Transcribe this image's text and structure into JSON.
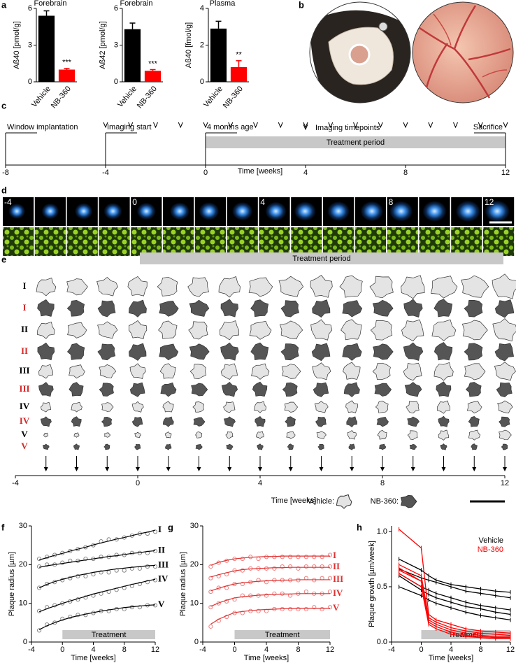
{
  "panel_labels": [
    "a",
    "b",
    "c",
    "d",
    "e",
    "f",
    "g",
    "h"
  ],
  "chart_data": [
    {
      "type": "bar",
      "title": "Forebrain",
      "ylabel": "Aß40 [pmol/g]",
      "categories": [
        "Vehicle",
        "NB-360"
      ],
      "values": [
        5.4,
        1.0
      ],
      "errors": [
        0.4,
        0.1
      ],
      "colors": [
        "#000000",
        "#ff0000"
      ],
      "ylim": [
        0,
        6
      ],
      "yticks": [
        0,
        3,
        6
      ],
      "significance": "***"
    },
    {
      "type": "bar",
      "title": "Forebrain",
      "ylabel": "Aß42 [pmol/g]",
      "categories": [
        "Vehicle",
        "NB-360"
      ],
      "values": [
        4.3,
        0.9
      ],
      "errors": [
        0.5,
        0.1
      ],
      "colors": [
        "#000000",
        "#ff0000"
      ],
      "ylim": [
        0,
        6
      ],
      "yticks": [
        0,
        3,
        6
      ],
      "significance": "***"
    },
    {
      "type": "bar",
      "title": "Plasma",
      "ylabel": "Aß40 [fmol/g]",
      "categories": [
        "Vehicle",
        "NB-360"
      ],
      "values": [
        2.9,
        0.8
      ],
      "errors": [
        0.4,
        0.35
      ],
      "colors": [
        "#000000",
        "#ff0000"
      ],
      "ylim": [
        0,
        4
      ],
      "yticks": [
        0,
        2,
        4
      ],
      "significance": "**"
    },
    {
      "type": "scatter_fit",
      "xlabel": "Time [weeks]",
      "ylabel": "Plaque radius [µm]",
      "xlim": [
        -4,
        12
      ],
      "xticks": [
        -4,
        0,
        4,
        8,
        12
      ],
      "ylim": [
        0,
        30
      ],
      "yticks": [
        0,
        10,
        20,
        30
      ],
      "treatment": {
        "label": "Treatment",
        "start": 0,
        "end": 12
      },
      "x": [
        -3,
        -2,
        -1,
        0,
        1,
        2,
        3,
        4,
        5,
        6,
        7,
        8,
        9,
        10,
        11,
        12
      ],
      "series": [
        {
          "name": "I",
          "color": "#888888",
          "line_color": "#000000",
          "values": [
            21.5,
            22,
            22.5,
            23,
            23.5,
            24,
            24.5,
            25,
            26,
            26.5,
            26.5,
            27,
            27.5,
            28,
            28,
            28.5
          ],
          "fit": [
            21.2,
            21.8,
            22.4,
            22.9,
            23.5,
            24.0,
            24.5,
            25.1,
            25.6,
            26.1,
            26.6,
            27.0,
            27.5,
            28.0,
            28.4,
            28.9
          ]
        },
        {
          "name": "II",
          "color": "#888888",
          "line_color": "#000000",
          "values": [
            19.5,
            20,
            20,
            20.5,
            21,
            21,
            21.5,
            21.5,
            22,
            22,
            22.5,
            22.5,
            23,
            23,
            23,
            23.5
          ],
          "fit": [
            19.3,
            19.7,
            20.0,
            20.3,
            20.6,
            20.9,
            21.2,
            21.5,
            21.8,
            22.1,
            22.3,
            22.6,
            22.9,
            23.1,
            23.4,
            23.6
          ]
        },
        {
          "name": "III",
          "color": "#888888",
          "line_color": "#000000",
          "values": [
            14,
            15,
            15.5,
            16,
            16.5,
            17,
            17,
            17.5,
            18,
            18,
            18.5,
            18.5,
            19,
            19,
            19.5,
            19.5
          ],
          "fit": [
            14.0,
            14.9,
            15.6,
            16.2,
            16.7,
            17.2,
            17.6,
            18.0,
            18.3,
            18.6,
            18.9,
            19.1,
            19.3,
            19.5,
            19.7,
            19.8
          ]
        },
        {
          "name": "IV",
          "color": "#888888",
          "line_color": "#000000",
          "values": [
            8,
            9,
            9.5,
            10,
            10.5,
            11,
            11.5,
            12,
            12.5,
            13,
            13.5,
            14,
            14.5,
            15,
            15.5,
            16
          ],
          "fit": [
            7.8,
            8.6,
            9.3,
            10.0,
            10.6,
            11.2,
            11.8,
            12.4,
            12.9,
            13.4,
            13.9,
            14.4,
            14.9,
            15.3,
            15.8,
            16.2
          ]
        },
        {
          "name": "V",
          "color": "#888888",
          "line_color": "#000000",
          "values": [
            3,
            4.5,
            5,
            6,
            6.5,
            7,
            7,
            7.5,
            8,
            8,
            8.5,
            8.5,
            9,
            9,
            9.5,
            9.5
          ],
          "fit": [
            3.2,
            4.2,
            5.0,
            5.7,
            6.3,
            6.8,
            7.2,
            7.6,
            8.0,
            8.3,
            8.6,
            8.9,
            9.1,
            9.3,
            9.5,
            9.6
          ]
        }
      ]
    },
    {
      "type": "scatter_fit",
      "xlabel": "Time [weeks]",
      "ylabel": "Plaque radius [µm]",
      "xlim": [
        -4,
        12
      ],
      "xticks": [
        -4,
        0,
        4,
        8,
        12
      ],
      "ylim": [
        0,
        30
      ],
      "yticks": [
        0,
        10,
        20,
        30
      ],
      "treatment": {
        "label": "Treatment",
        "start": 0,
        "end": 12
      },
      "x": [
        -3,
        -2,
        -1,
        0,
        1,
        2,
        3,
        4,
        5,
        6,
        7,
        8,
        9,
        10,
        11,
        12
      ],
      "series": [
        {
          "name": "I",
          "color": "#f08080",
          "line_color": "#e03030",
          "values": [
            19.5,
            20.5,
            21,
            21.5,
            21.5,
            22,
            21.5,
            22,
            22,
            22,
            22,
            22,
            22,
            22,
            22,
            22.5
          ],
          "fit": [
            19.8,
            20.6,
            21.1,
            21.5,
            21.7,
            21.9,
            22.0,
            22.1,
            22.1,
            22.2,
            22.2,
            22.2,
            22.2,
            22.2,
            22.2,
            22.2
          ]
        },
        {
          "name": "II",
          "color": "#f08080",
          "line_color": "#e03030",
          "values": [
            16.5,
            17,
            17.5,
            18.5,
            18.5,
            19,
            19,
            19,
            19,
            19.5,
            19.5,
            19,
            19.5,
            19.5,
            19.5,
            19.5
          ],
          "fit": [
            16.8,
            17.4,
            17.9,
            18.4,
            18.7,
            18.9,
            19.0,
            19.1,
            19.2,
            19.2,
            19.3,
            19.3,
            19.3,
            19.3,
            19.3,
            19.3
          ]
        },
        {
          "name": "III",
          "color": "#f08080",
          "line_color": "#e03030",
          "values": [
            13,
            14,
            14,
            15,
            15,
            15.5,
            16,
            15.5,
            16,
            16,
            16,
            16,
            16.5,
            16,
            16.5,
            16.5
          ],
          "fit": [
            13.2,
            13.9,
            14.5,
            15.0,
            15.3,
            15.5,
            15.7,
            15.8,
            15.9,
            16.0,
            16.0,
            16.1,
            16.1,
            16.1,
            16.1,
            16.1
          ]
        },
        {
          "name": "IV",
          "color": "#f08080",
          "line_color": "#e03030",
          "values": [
            9,
            10,
            10.5,
            11,
            12,
            12,
            12,
            12,
            12.5,
            12.5,
            12,
            12.5,
            13,
            12.5,
            12.5,
            13
          ],
          "fit": [
            9.2,
            10.1,
            10.8,
            11.4,
            11.7,
            11.9,
            12.1,
            12.2,
            12.3,
            12.4,
            12.4,
            12.5,
            12.5,
            12.5,
            12.5,
            12.5
          ]
        },
        {
          "name": "V",
          "color": "#f08080",
          "line_color": "#e03030",
          "values": [
            4,
            5.5,
            6.5,
            7.5,
            7.5,
            8,
            8,
            8,
            8.5,
            8.5,
            8.5,
            8.5,
            8.5,
            9,
            8.5,
            9
          ],
          "fit": [
            4.6,
            5.9,
            6.8,
            7.6,
            7.9,
            8.1,
            8.3,
            8.4,
            8.5,
            8.6,
            8.6,
            8.7,
            8.7,
            8.7,
            8.7,
            8.7
          ]
        }
      ]
    },
    {
      "type": "line_groups",
      "xlabel": "Time [weeks]",
      "ylabel": "Plaque growth [µm/week]",
      "xlim": [
        -4,
        12
      ],
      "xticks": [
        -4,
        0,
        4,
        8,
        12
      ],
      "ylim": [
        0,
        1.05
      ],
      "yticks": [
        {
          "value": 0,
          "label": "0.0"
        },
        {
          "value": 0.5,
          "label": "0.5"
        },
        {
          "value": 1,
          "label": "1.0"
        }
      ],
      "treatment": {
        "label": "Treatment",
        "start": 0,
        "end": 12
      },
      "x": [
        -3,
        0,
        1,
        2,
        4,
        6,
        8,
        10,
        12
      ],
      "groups": [
        {
          "name": "Vehicle",
          "color": "#000000",
          "lines": [
            [
              0.75,
              0.65,
              0.6,
              0.56,
              0.52,
              0.5,
              0.48,
              0.46,
              0.45
            ],
            [
              0.66,
              0.58,
              0.56,
              0.54,
              0.5,
              0.46,
              0.44,
              0.42,
              0.4
            ],
            [
              0.62,
              0.5,
              0.47,
              0.44,
              0.4,
              0.36,
              0.33,
              0.31,
              0.29
            ],
            [
              0.6,
              0.47,
              0.43,
              0.4,
              0.36,
              0.32,
              0.3,
              0.27,
              0.25
            ],
            [
              0.5,
              0.42,
              0.38,
              0.35,
              0.31,
              0.27,
              0.24,
              0.22,
              0.2
            ]
          ]
        },
        {
          "name": "NB-360",
          "color": "#ff0000",
          "lines": [
            [
              1.02,
              0.85,
              0.25,
              0.2,
              0.16,
              0.12,
              0.1,
              0.09,
              0.08
            ],
            [
              0.7,
              0.6,
              0.22,
              0.18,
              0.13,
              0.1,
              0.08,
              0.07,
              0.06
            ],
            [
              0.67,
              0.55,
              0.2,
              0.16,
              0.11,
              0.08,
              0.06,
              0.05,
              0.05
            ],
            [
              0.65,
              0.55,
              0.18,
              0.14,
              0.09,
              0.06,
              0.05,
              0.04,
              0.04
            ],
            [
              0.62,
              0.5,
              0.16,
              0.12,
              0.07,
              0.05,
              0.04,
              0.03,
              0.03
            ]
          ]
        }
      ]
    }
  ],
  "timeline": {
    "xlabel": "Time [weeks]",
    "xlim": [
      -8,
      12
    ],
    "xticks": [
      -8,
      -4,
      0,
      4,
      8,
      12
    ],
    "treatment": {
      "label": "Treatment period",
      "start": 0,
      "end": 12
    },
    "imaging_label": "Imaging timepoints",
    "imaging_weeks": [
      -4,
      -3,
      -2,
      -1,
      0,
      1,
      2,
      3,
      4,
      5,
      6,
      7,
      8,
      9,
      10,
      11,
      12
    ],
    "events": [
      {
        "label": "Window implantation",
        "week": -8
      },
      {
        "label": "Imaging start",
        "week": -4
      },
      {
        "label": "4 months age",
        "week": 0
      },
      {
        "label": "Sacrifice",
        "week": 12
      }
    ]
  },
  "imaging": {
    "time_labels": [
      "-4",
      "0",
      "4",
      "8",
      "12"
    ]
  },
  "plaques": {
    "xlabel": "Time [weeks]",
    "xlim": [
      -4,
      12
    ],
    "xticks": [
      -4,
      0,
      4,
      8,
      12
    ],
    "treatment": {
      "label": "Treatment period",
      "start": 0,
      "end": 12
    },
    "weeks": [
      -3,
      -2,
      -1,
      0,
      1,
      2,
      3,
      4,
      5,
      6,
      7,
      8,
      9,
      10,
      11,
      12
    ],
    "groups": [
      {
        "name": "Vehicle:",
        "color": "#e4e4e4",
        "label_color": "#000000"
      },
      {
        "name": "NB-360:",
        "color": "#555555",
        "label_color": "#d62728"
      }
    ],
    "rows": [
      {
        "label": "I",
        "group": 0
      },
      {
        "label": "I",
        "group": 1
      },
      {
        "label": "II",
        "group": 0
      },
      {
        "label": "II",
        "group": 1
      },
      {
        "label": "III",
        "group": 0
      },
      {
        "label": "III",
        "group": 1
      },
      {
        "label": "IV",
        "group": 0
      },
      {
        "label": "IV",
        "group": 1
      },
      {
        "label": "V",
        "group": 0
      },
      {
        "label": "V",
        "group": 1
      }
    ]
  }
}
